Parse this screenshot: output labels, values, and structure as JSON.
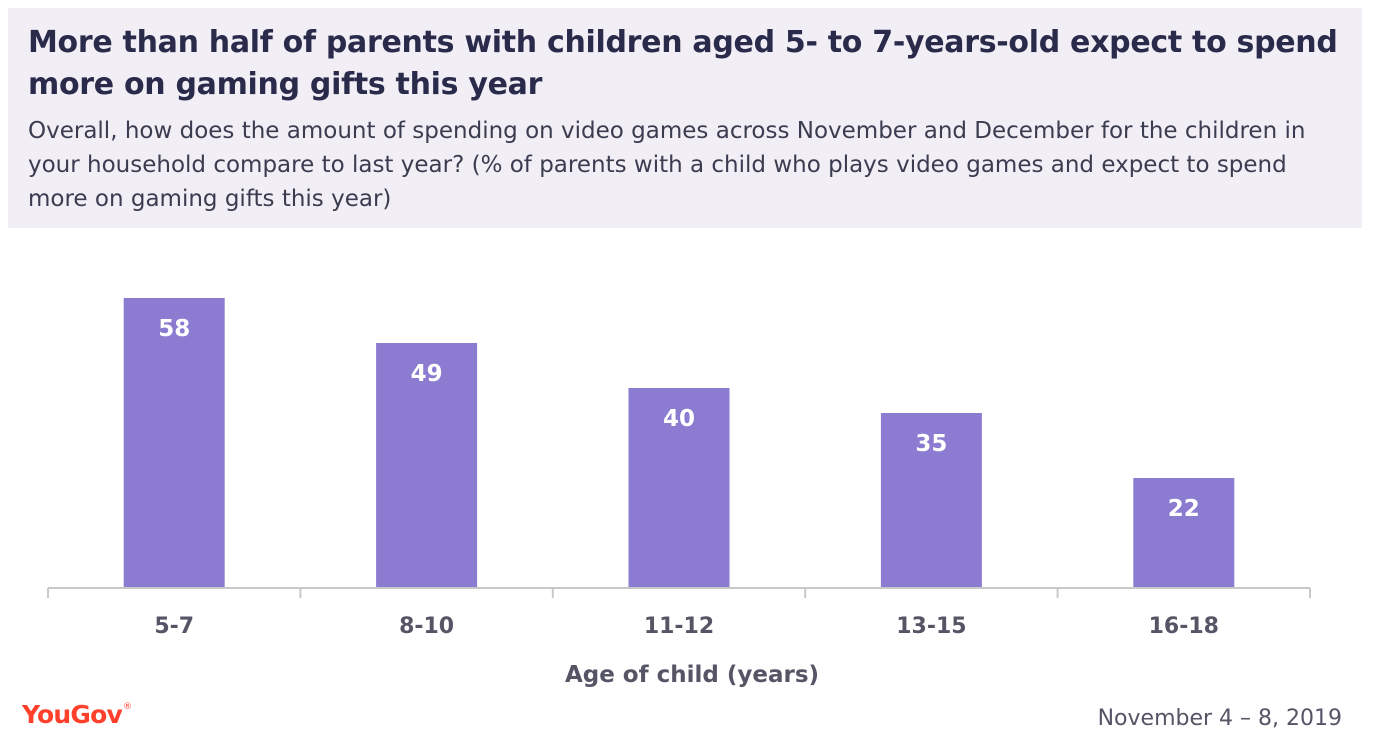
{
  "header": {
    "title": "More than half of parents with children aged 5- to 7-years-old expect to spend more on gaming gifts this year",
    "subtitle": "Overall, how does the amount of spending on video games across November and December for the children in your household compare to last year? (% of parents with a child who plays video games and expect to spend more on gaming gifts this year)"
  },
  "chart_data": {
    "type": "bar",
    "title": "More than half of parents with children aged 5- to 7-years-old expect to spend more on gaming gifts this year",
    "xlabel": "Age of child (years)",
    "ylabel": "",
    "categories": [
      "5-7",
      "8-10",
      "11-12",
      "13-15",
      "16-18"
    ],
    "values": [
      58,
      49,
      40,
      35,
      22
    ],
    "ylim": [
      0,
      60
    ],
    "grid": false,
    "legend": "none",
    "bar_color": "#8b7bd1",
    "data_labels": "inside-top"
  },
  "footer": {
    "brand": "YouGov",
    "brand_mark": "®",
    "date": "November 4 – 8, 2019"
  },
  "colors": {
    "brand": "#ff412c",
    "header_bg": "#f1eef6",
    "bar": "#8b7bd1",
    "axis": "#c8c8c8",
    "tick_text": "#555566"
  }
}
